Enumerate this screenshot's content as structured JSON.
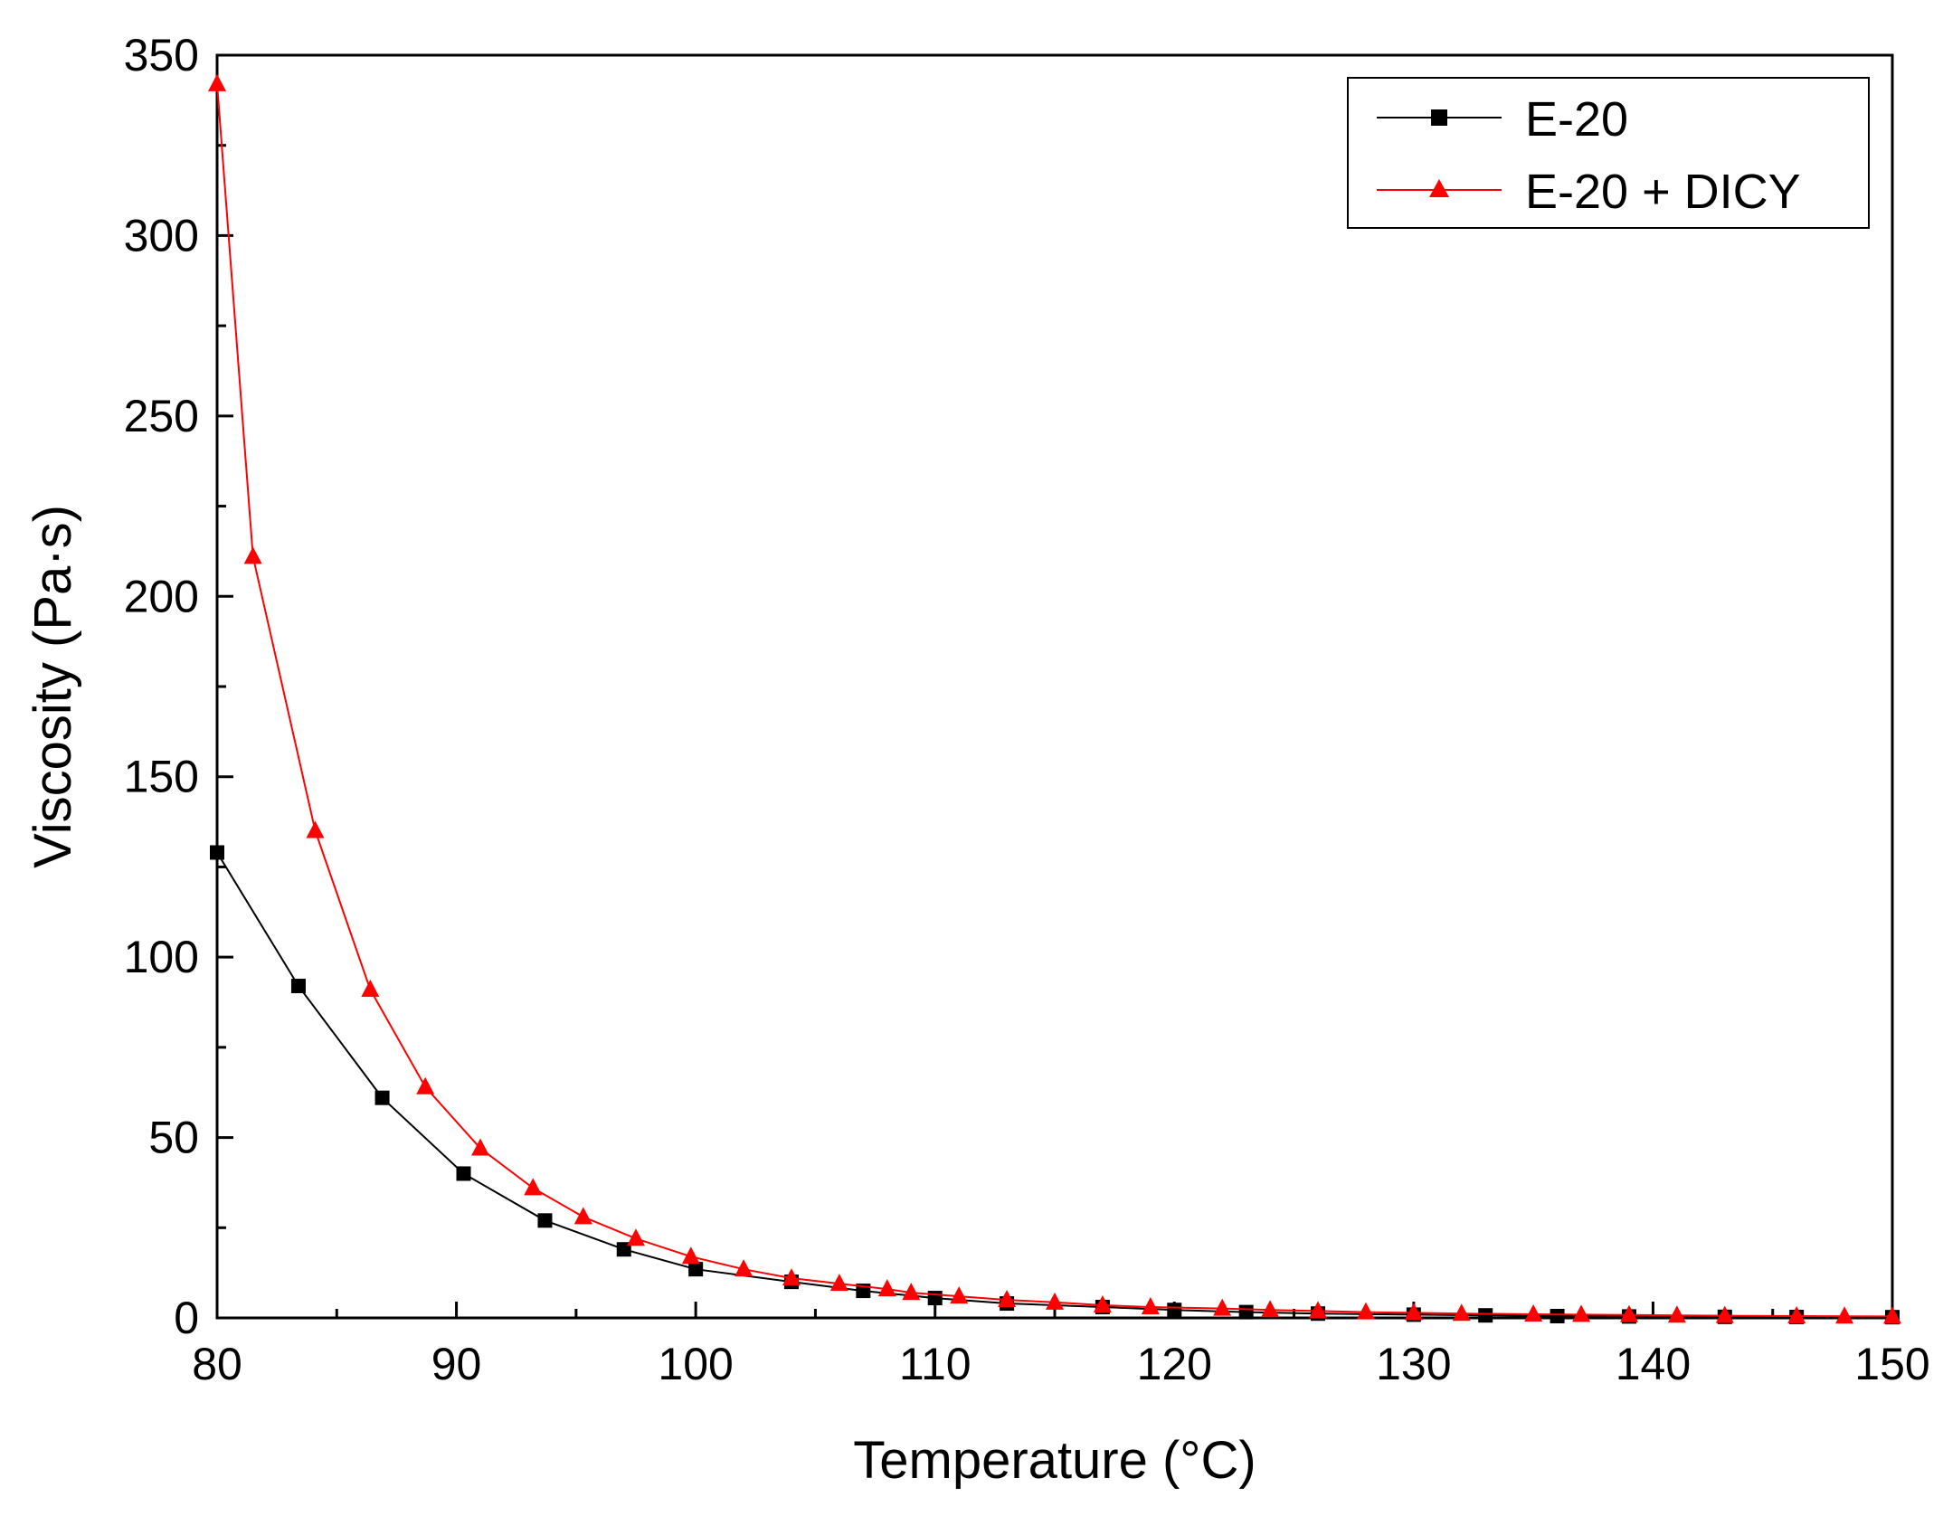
{
  "chart_data": {
    "type": "line",
    "title": "",
    "xlabel": "Temperature (°C)",
    "ylabel": "Viscosity (Pa·s)",
    "xlim": [
      80,
      150
    ],
    "ylim": [
      0,
      350
    ],
    "x_ticks": [
      "80",
      "90",
      "100",
      "110",
      "120",
      "130",
      "140",
      "150"
    ],
    "y_ticks": [
      "0",
      "50",
      "100",
      "150",
      "200",
      "250",
      "300",
      "350"
    ],
    "grid": false,
    "legend_position": "top-right",
    "series": [
      {
        "name": "E-20",
        "color": "#000000",
        "marker": "square",
        "x": [
          80,
          83.4,
          86.9,
          90.3,
          93.7,
          97.0,
          100.0,
          104.0,
          107.0,
          110.0,
          113.0,
          117.0,
          120.0,
          123.0,
          126.0,
          130.0,
          133.0,
          136.0,
          139.0,
          143.0,
          146.0,
          150.0
        ],
        "values": [
          129,
          92,
          61,
          40,
          27,
          19,
          13.5,
          10,
          7.5,
          5.5,
          4,
          3,
          2.2,
          1.6,
          1.2,
          0.9,
          0.7,
          0.5,
          0.4,
          0.3,
          0.25,
          0.2
        ]
      },
      {
        "name": "E-20 + DICY",
        "color": "#ff0000",
        "marker": "triangle",
        "x": [
          80,
          81.5,
          84.1,
          86.4,
          88.7,
          91.0,
          93.2,
          95.3,
          97.5,
          99.8,
          102.0,
          104.0,
          106.0,
          108.0,
          109.0,
          111.0,
          113.0,
          115.0,
          117.0,
          119.0,
          122.0,
          124.0,
          126.0,
          128.0,
          130.0,
          132.0,
          135.0,
          137.0,
          139.0,
          141.0,
          143.0,
          146.0,
          148.0,
          150.0
        ],
        "values": [
          342,
          211,
          135,
          91,
          64,
          47,
          36,
          28,
          22,
          17,
          13.5,
          11,
          9.5,
          8,
          7,
          6,
          5,
          4.3,
          3.5,
          3,
          2.6,
          2.2,
          1.9,
          1.6,
          1.4,
          1.2,
          1.0,
          0.9,
          0.8,
          0.7,
          0.6,
          0.5,
          0.45,
          0.4
        ]
      }
    ]
  }
}
